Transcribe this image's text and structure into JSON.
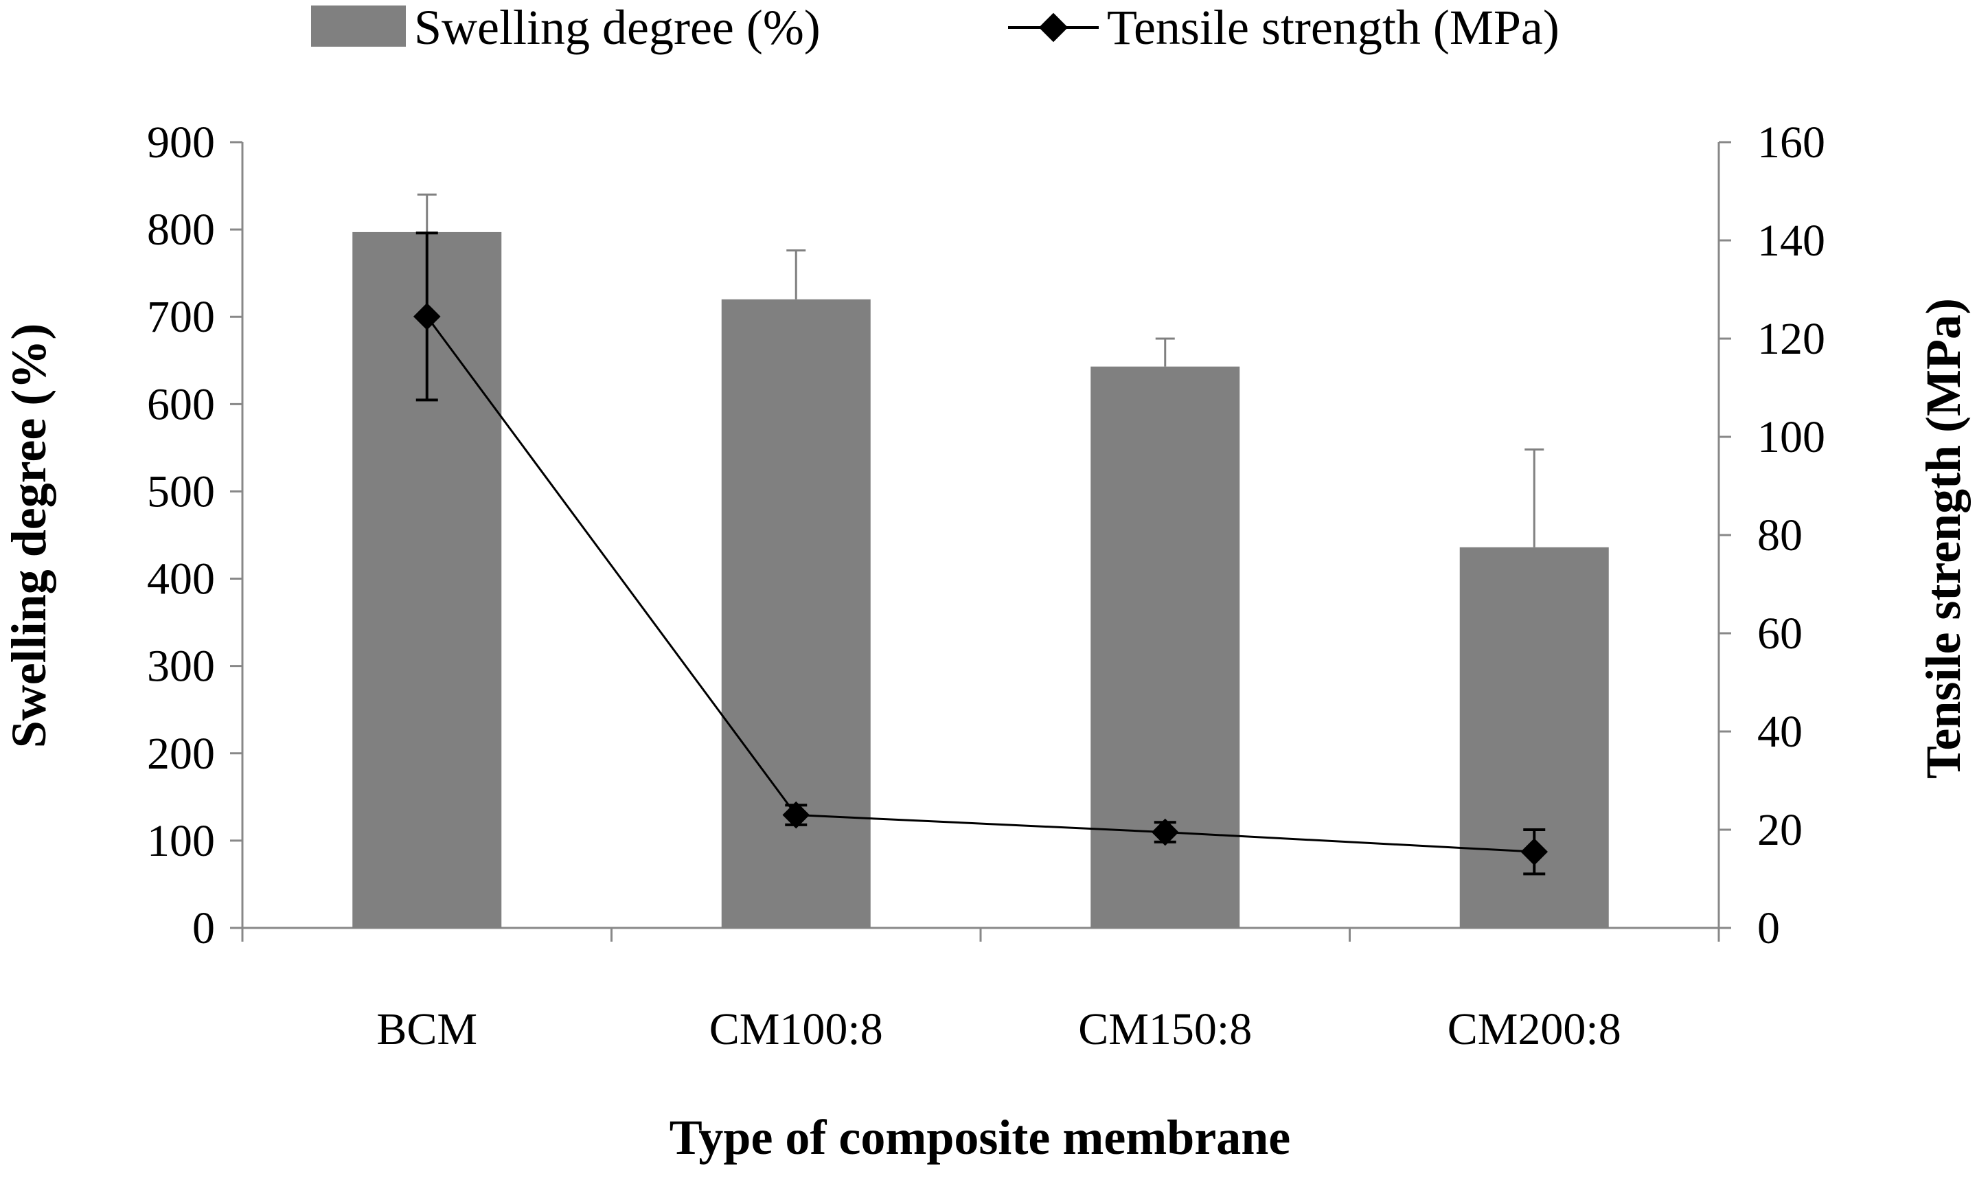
{
  "chart_data": {
    "type": "bar+line",
    "categories": [
      "BCM",
      "CM100:8",
      "CM150:8",
      "CM200:8"
    ],
    "series": [
      {
        "name": "Swelling degree (%)",
        "kind": "bar",
        "axis": "left",
        "color": "#808080",
        "values": [
          797,
          720,
          643,
          436
        ],
        "error_upper": [
          840,
          776,
          675,
          548
        ]
      },
      {
        "name": "Tensile strength (MPa)",
        "kind": "line",
        "axis": "right",
        "color": "#000000",
        "values": [
          124.5,
          23,
          19.5,
          15.5
        ],
        "error": [
          17,
          2,
          2,
          4.5
        ]
      }
    ],
    "xlabel": "Type of composite membrane",
    "ylabel_left": "Swelling degree (%)",
    "ylabel_right": "Tensile strength (MPa)",
    "ylim_left": [
      0,
      900
    ],
    "yticks_left": [
      0,
      100,
      200,
      300,
      400,
      500,
      600,
      700,
      800,
      900
    ],
    "ylim_right": [
      0,
      160
    ],
    "yticks_right": [
      0,
      20,
      40,
      60,
      80,
      100,
      120,
      140,
      160
    ],
    "legend_position": "top",
    "grid": false
  }
}
